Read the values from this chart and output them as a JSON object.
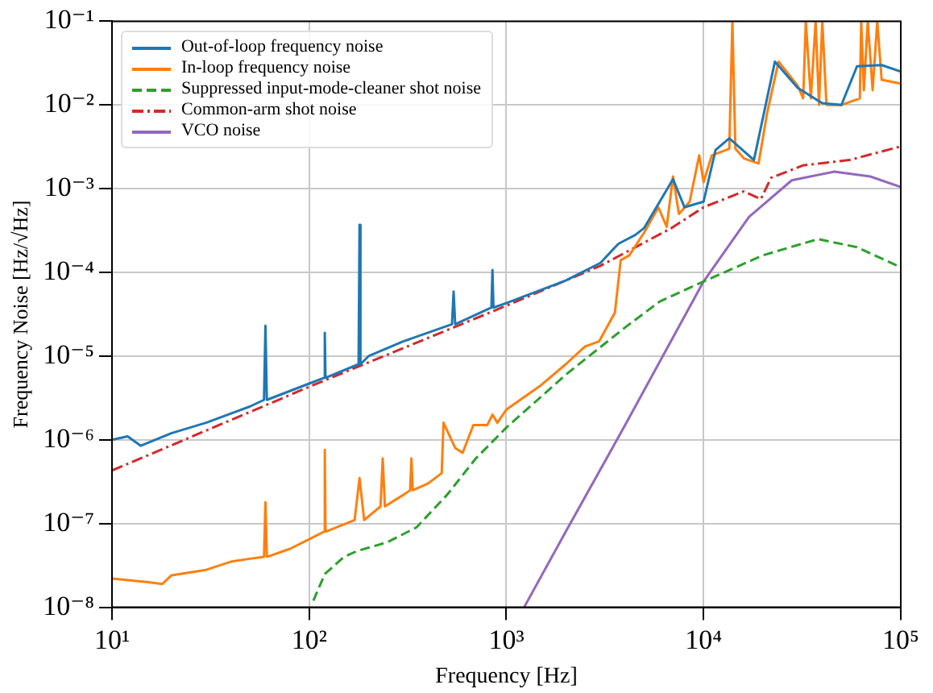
{
  "chart_data": {
    "type": "line",
    "xlabel": "Frequency [Hz]",
    "ylabel": "Frequency Noise [Hz/√Hz]",
    "log": "xy",
    "grid": true,
    "legend": "top left",
    "xlim": [
      10,
      100000
    ],
    "xticks": [
      {
        "value": 10,
        "label": "10¹"
      },
      {
        "value": 100,
        "label": "10²"
      },
      {
        "value": 1000,
        "label": "10³"
      },
      {
        "value": 10000,
        "label": "10⁴"
      },
      {
        "value": 100000,
        "label": "10⁵"
      }
    ],
    "ylim": [
      1e-08,
      0.1
    ],
    "yticks": [
      {
        "value": 1e-08,
        "label": "10⁻⁸"
      },
      {
        "value": 1e-07,
        "label": "10⁻⁷"
      },
      {
        "value": 1e-06,
        "label": "10⁻⁶"
      },
      {
        "value": 1e-05,
        "label": "10⁻⁵"
      },
      {
        "value": 0.0001,
        "label": "10⁻⁴"
      },
      {
        "value": 0.001,
        "label": "10⁻³"
      },
      {
        "value": 0.01,
        "label": "10⁻²"
      },
      {
        "value": 0.1,
        "label": "10⁻¹"
      }
    ],
    "series": [
      {
        "name": "Out-of-loop frequency noise",
        "color": "#1f77b4",
        "line_style": "solid",
        "x": [
          10,
          12,
          14,
          20,
          30,
          50,
          59,
          60,
          61,
          100,
          119,
          120,
          121,
          178,
          180,
          182,
          200,
          300,
          530,
          540,
          550,
          840,
          850,
          860,
          1000,
          2000,
          3000,
          3700,
          4500,
          5000,
          7000,
          8000,
          10000,
          11500,
          13500,
          18000,
          23000,
          30000,
          40000,
          50000,
          60000,
          80000,
          100000
        ],
        "values": [
          1e-06,
          1.1e-06,
          8.5e-07,
          1.2e-06,
          1.6e-06,
          2.5e-06,
          3e-06,
          2.3e-05,
          3e-06,
          4.7e-06,
          5.5e-06,
          1.9e-05,
          5.5e-06,
          8e-06,
          0.00037,
          8e-06,
          1e-05,
          1.5e-05,
          2.4e-05,
          5.9e-05,
          2.4e-05,
          3.8e-05,
          0.000107,
          3.8e-05,
          4.3e-05,
          8e-05,
          0.00013,
          0.00022,
          0.00028,
          0.00034,
          0.0013,
          0.0006,
          0.0007,
          0.0029,
          0.004,
          0.0022,
          0.033,
          0.016,
          0.0105,
          0.01,
          0.029,
          0.03,
          0.025
        ]
      },
      {
        "name": "In-loop frequency noise",
        "color": "#ff7f0e",
        "line_style": "solid",
        "x": [
          10,
          15,
          18,
          20,
          30,
          40,
          50,
          59,
          60,
          61,
          80,
          100,
          119,
          120,
          121,
          170,
          180,
          190,
          230,
          236,
          242,
          300,
          325,
          330,
          335,
          400,
          470,
          480,
          550,
          600,
          680,
          800,
          850,
          900,
          1000,
          1500,
          2000,
          2500,
          2950,
          3550,
          3800,
          4200,
          5000,
          5900,
          6500,
          7000,
          7500,
          8500,
          9500,
          10000,
          11000,
          13500,
          14000,
          14500,
          16000,
          19000,
          21000,
          24000,
          30000,
          32000,
          33000,
          35000,
          37000,
          38500,
          40000,
          42000,
          50000,
          62000,
          63000,
          65000,
          68000,
          72000,
          76000,
          80000,
          100000
        ],
        "values": [
          2.2e-08,
          2e-08,
          1.9e-08,
          2.4e-08,
          2.8e-08,
          3.5e-08,
          3.8e-08,
          4e-08,
          1.8e-07,
          4e-08,
          5e-08,
          6.5e-08,
          8e-08,
          7.6e-07,
          8e-08,
          1.1e-07,
          3.5e-07,
          1.1e-07,
          1.6e-07,
          6e-07,
          1.6e-07,
          2.2e-07,
          2.5e-07,
          6e-07,
          2.5e-07,
          3e-07,
          4e-07,
          1.6e-06,
          8e-07,
          7e-07,
          1.5e-06,
          1.5e-06,
          2e-06,
          1.6e-06,
          2.3e-06,
          4.5e-06,
          8e-06,
          1.3e-05,
          1.5e-05,
          3.3e-05,
          0.00014,
          0.00016,
          0.0003,
          0.0006,
          0.00035,
          0.0014,
          0.0005,
          0.0007,
          0.0025,
          0.0012,
          0.0025,
          0.003,
          0.1,
          0.003,
          0.0023,
          0.002,
          0.008,
          0.033,
          0.017,
          0.012,
          0.1,
          0.012,
          0.1,
          0.01,
          0.1,
          0.01,
          0.01,
          0.012,
          0.1,
          0.015,
          0.1,
          0.015,
          0.1,
          0.02,
          0.018
        ]
      },
      {
        "name": "Suppressed input-mode-cleaner shot noise",
        "color": "#2ca02c",
        "line_style": "dashed",
        "x": [
          105,
          120,
          150,
          175,
          250,
          350,
          500,
          700,
          1000,
          2000,
          4000,
          6000,
          10000,
          20000,
          38000,
          60000,
          100000
        ],
        "values": [
          1.2e-08,
          2.5e-08,
          4e-08,
          4.7e-08,
          6e-08,
          9e-08,
          2.2e-07,
          6e-07,
          1.4e-06,
          6e-06,
          2.2e-05,
          4.5e-05,
          7.8e-05,
          0.00016,
          0.00025,
          0.0002,
          0.000115
        ]
      },
      {
        "name": "Common-arm shot noise",
        "color": "#d62728",
        "line_style": "dashdot",
        "x": [
          10,
          100,
          1000,
          3000,
          6900,
          10000,
          16000,
          19500,
          22000,
          32000,
          55000,
          100000
        ],
        "values": [
          4.3e-07,
          4.3e-06,
          4e-05,
          0.00012,
          0.00034,
          0.0006,
          0.00093,
          0.00075,
          0.00135,
          0.0019,
          0.0022,
          0.0032
        ]
      },
      {
        "name": "VCO noise",
        "color": "#9467bd",
        "line_style": "solid",
        "x": [
          1230,
          2000,
          4000,
          8300,
          10000,
          17000,
          28000,
          46000,
          70000,
          100000
        ],
        "values": [
          1e-08,
          8e-08,
          1.5e-06,
          3.5e-05,
          7.8e-05,
          0.00046,
          0.00126,
          0.0016,
          0.0014,
          0.00105
        ]
      }
    ]
  }
}
